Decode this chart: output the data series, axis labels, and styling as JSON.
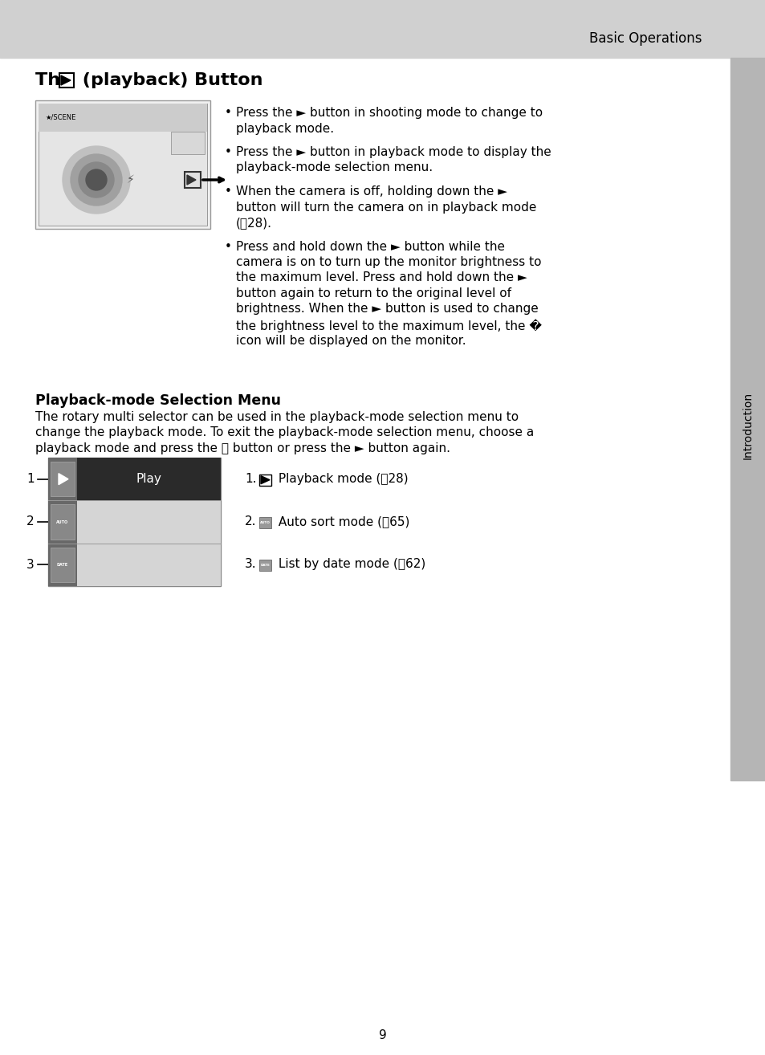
{
  "page_bg": "#ffffff",
  "header_bg": "#d0d0d0",
  "header_text": "Basic Operations",
  "sidebar_bg": "#b0b0b0",
  "sidebar_text": "Introduction",
  "page_number": "9",
  "title_pre": "The ",
  "title_post": " (playback) Button",
  "bullet1_lines": [
    "Press the ► button in shooting mode to change to",
    "playback mode."
  ],
  "bullet2_lines": [
    "Press the ► button in playback mode to display the",
    "playback-mode selection menu."
  ],
  "bullet3_lines": [
    "When the camera is off, holding down the ►",
    "button will turn the camera on in playback mode",
    "(\u000328)."
  ],
  "bullet4_lines": [
    "Press and hold down the ► button while the",
    "camera is on to turn up the monitor brightness to",
    "the maximum level. Press and hold down the ►",
    "button again to return to the original level of",
    "brightness. When the ► button is used to change",
    "the brightness level to the maximum level, the �",
    "icon will be displayed on the monitor."
  ],
  "section2_title": "Playback-mode Selection Menu",
  "section2_body_lines": [
    "The rotary multi selector can be used in the playback-mode selection menu to",
    "change the playback mode. To exit the playback-mode selection menu, choose a",
    "playback mode and press the ⒪ button or press the ► button again."
  ],
  "menu_row1_label": "Play",
  "list_item1_text": " Playback mode (\u000328)",
  "list_item2_text": " Auto sort mode (\u000365)",
  "list_item3_text": " List by date mode (\u000362)"
}
